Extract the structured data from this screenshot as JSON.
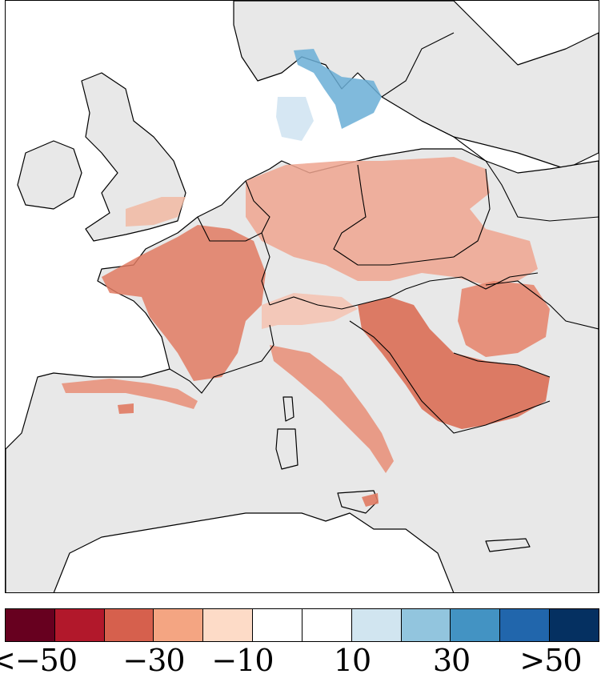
{
  "map": {
    "land_color": "#e8e8e8",
    "sea_color": "#ffffff",
    "border_color": "#000000"
  },
  "colorbar": {
    "colors": [
      "#67001f",
      "#b2182b",
      "#d6604d",
      "#f4a582",
      "#fddbc7",
      "#ffffff",
      "#ffffff",
      "#d1e5f0",
      "#92c5de",
      "#4393c3",
      "#2166ac",
      "#053061"
    ],
    "labels": {
      "l1": "<−50",
      "l2": "−30",
      "l3": "−10",
      "l4": "10",
      "l5": "30",
      "l6": ">50"
    }
  }
}
